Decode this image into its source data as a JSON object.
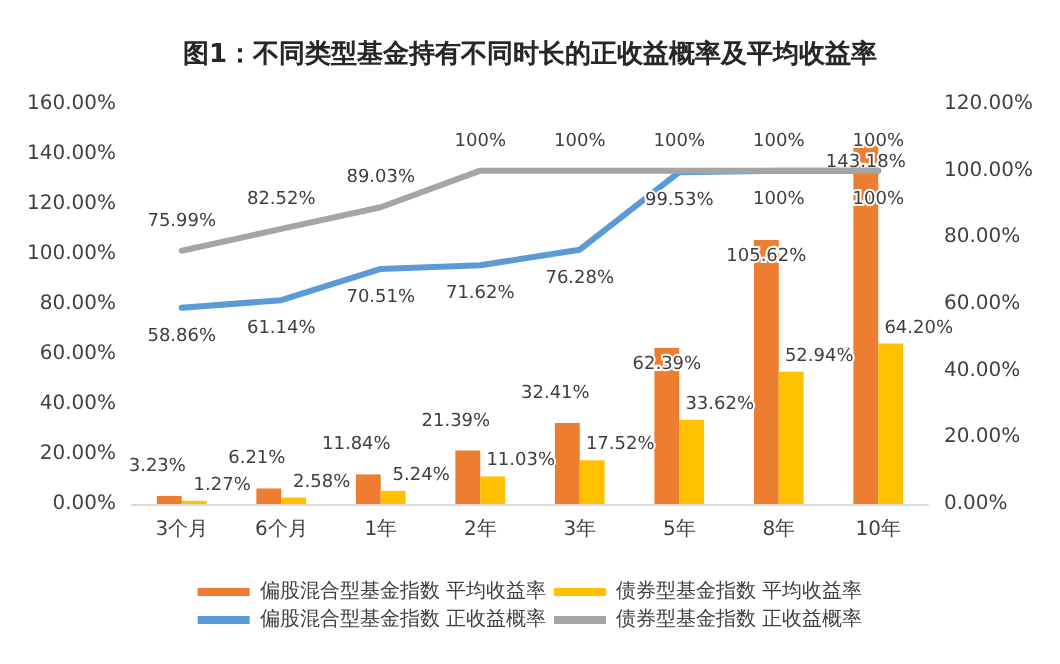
{
  "chart_data": {
    "type": "bar",
    "title": "图1：不同类型基金持有不同时长的正收益概率及平均收益率",
    "categories": [
      "3个月",
      "6个月",
      "1年",
      "2年",
      "3年",
      "5年",
      "8年",
      "10年"
    ],
    "series": [
      {
        "name": "偏股混合型基金指数 平均收益率",
        "color": "#ed7d31",
        "values": [
          3.23,
          6.21,
          11.84,
          21.39,
          32.41,
          62.39,
          105.62,
          143.18
        ],
        "value_labels": [
          "3.23%",
          "6.21%",
          "11.84%",
          "21.39%",
          "32.41%",
          "62.39%",
          "105.62%",
          "143.18%"
        ]
      },
      {
        "name": "债券型基金指数 平均收益率",
        "color": "#ffc000",
        "values": [
          1.27,
          2.58,
          5.24,
          11.03,
          17.52,
          33.62,
          52.94,
          64.2
        ],
        "value_labels": [
          "1.27%",
          "2.58%",
          "5.24%",
          "11.03%",
          "17.52%",
          "33.62%",
          "52.94%",
          "64.20%"
        ]
      },
      {
        "name": "偏股混合型基金指数 正收益概率",
        "type": "line",
        "axis": "y2",
        "color": "#5b9bd5",
        "values": [
          58.86,
          61.14,
          70.51,
          71.62,
          76.28,
          99.53,
          100,
          100
        ],
        "value_labels": [
          "58.86%",
          "61.14%",
          "70.51%",
          "71.62%",
          "76.28%",
          "99.53%",
          "100%",
          "100%"
        ]
      },
      {
        "name": "债券型基金指数 正收益概率",
        "type": "line",
        "axis": "y2",
        "color": "#a5a5a5",
        "values": [
          75.99,
          82.52,
          89.03,
          100,
          100,
          100,
          100,
          100
        ],
        "value_labels": [
          "75.99%",
          "82.52%",
          "89.03%",
          "100%",
          "100%",
          "100%",
          "100%",
          "100%"
        ]
      }
    ],
    "ylim": [
      0,
      160
    ],
    "yticks": [
      {
        "value": 0,
        "label": "0.00%"
      },
      {
        "value": 20,
        "label": "20.00%"
      },
      {
        "value": 40,
        "label": "40.00%"
      },
      {
        "value": 60,
        "label": "60.00%"
      },
      {
        "value": 80,
        "label": "80.00%"
      },
      {
        "value": 100,
        "label": "100.00%"
      },
      {
        "value": 120,
        "label": "120.00%"
      },
      {
        "value": 140,
        "label": "140.00%"
      },
      {
        "value": 160,
        "label": "160.00%"
      }
    ],
    "y2lim": [
      0,
      120
    ],
    "y2ticks": [
      {
        "value": 0,
        "label": "0.00%"
      },
      {
        "value": 20,
        "label": "20.00%"
      },
      {
        "value": 40,
        "label": "40.00%"
      },
      {
        "value": 60,
        "label": "60.00%"
      },
      {
        "value": 80,
        "label": "80.00%"
      },
      {
        "value": 100,
        "label": "100.00%"
      },
      {
        "value": 120,
        "label": "120.00%"
      }
    ],
    "legend": "bottom",
    "grid": false,
    "marker": "none",
    "line_style": "solid"
  }
}
